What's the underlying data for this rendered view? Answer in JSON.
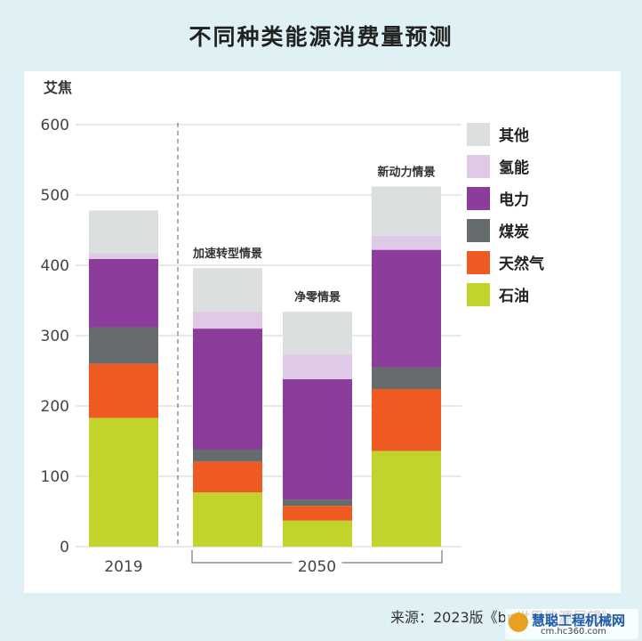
{
  "chart_data": {
    "type": "bar",
    "stacked": true,
    "title": "不同种类能源消费量预测",
    "ylabel": "艾焦",
    "ylim": [
      0,
      600
    ],
    "yticks": [
      0,
      100,
      200,
      300,
      400,
      500,
      600
    ],
    "grid": true,
    "legend_position": "right",
    "categories": [
      "2019",
      "加速转型情景",
      "净零情景",
      "新动力情景"
    ],
    "group_labels": [
      {
        "label": "2019",
        "members": [
          "2019"
        ]
      },
      {
        "label": "2050",
        "members": [
          "加速转型情景",
          "净零情景",
          "新动力情景"
        ]
      }
    ],
    "series": [
      {
        "name": "石油",
        "color": "#c2d42c",
        "values": [
          183,
          77,
          37,
          136
        ]
      },
      {
        "name": "天然气",
        "color": "#ee5a22",
        "values": [
          77,
          44,
          21,
          88
        ]
      },
      {
        "name": "煤炭",
        "color": "#666b6d",
        "values": [
          52,
          17,
          9,
          31
        ]
      },
      {
        "name": "电力",
        "color": "#8c3d9c",
        "values": [
          97,
          172,
          171,
          167
        ]
      },
      {
        "name": "氢能",
        "color": "#e0c9e6",
        "values": [
          8,
          24,
          35,
          20
        ]
      },
      {
        "name": "其他",
        "color": "#dcdfe0",
        "values": [
          61,
          62,
          61,
          70
        ]
      }
    ]
  },
  "source_text": "来源：2023版《bp世界能源展望》",
  "watermark": {
    "main": "慧聪工程机械网",
    "sub": "cm.hc360.com"
  }
}
